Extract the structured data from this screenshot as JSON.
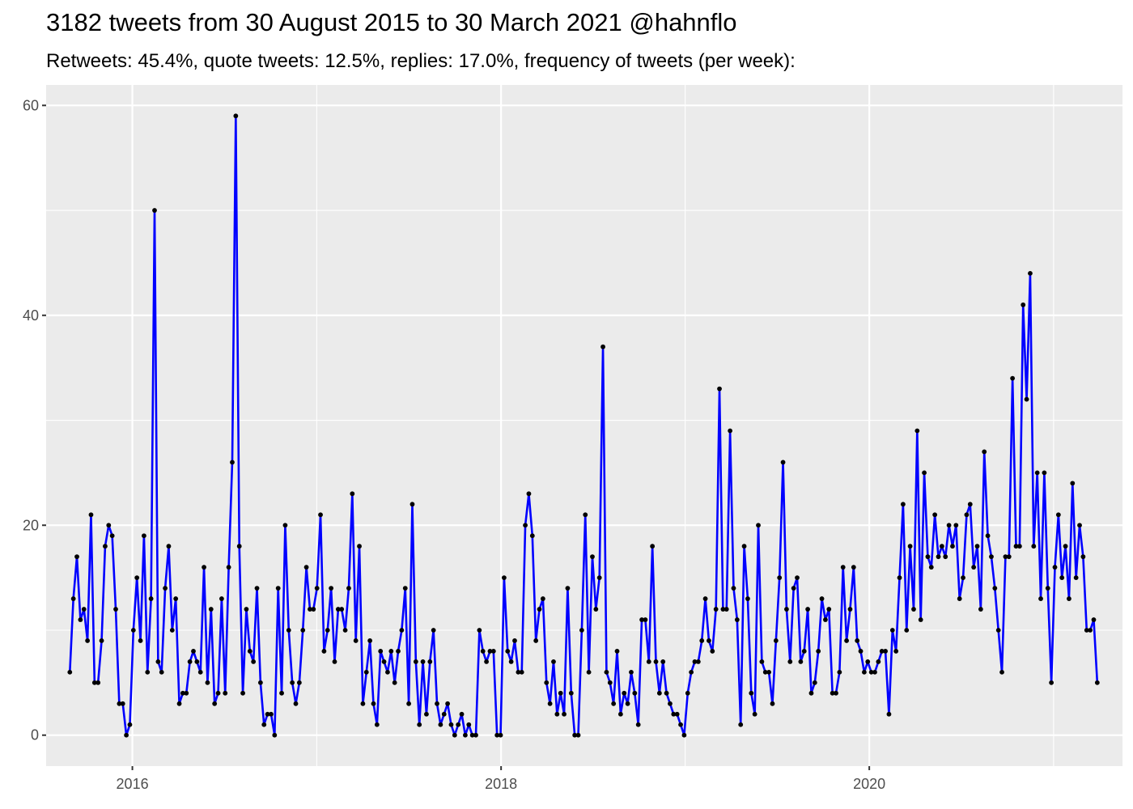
{
  "chart_data": {
    "type": "line",
    "title": "3182 tweets from 30 August 2015 to 30 March 2021 @hahnflo",
    "subtitle": "Retweets: 45.4%, quote tweets: 12.5%, replies: 17.0%, frequency of tweets (per week):",
    "xlabel": "",
    "ylabel": "",
    "x_start": "2015-08-30",
    "x_step_days": 7,
    "x_ticks": [
      {
        "label": "2016",
        "date": "2016-01-01"
      },
      {
        "label": "2018",
        "date": "2018-01-01"
      },
      {
        "label": "2020",
        "date": "2020-01-01"
      }
    ],
    "y_ticks": [
      0,
      20,
      40,
      60
    ],
    "ylim": [
      -2.95,
      61.95
    ],
    "xlim": [
      "2015-07-14",
      "2021-05-17"
    ],
    "grid": true,
    "legend": "none",
    "series": [
      {
        "color": "#0000ff",
        "point_color": "#000000",
        "values": [
          6,
          13,
          17,
          11,
          12,
          9,
          21,
          5,
          5,
          9,
          18,
          20,
          19,
          12,
          3,
          3,
          0,
          1,
          10,
          15,
          9,
          19,
          6,
          13,
          50,
          7,
          6,
          14,
          18,
          10,
          13,
          3,
          4,
          4,
          7,
          8,
          7,
          6,
          16,
          5,
          12,
          3,
          4,
          13,
          4,
          16,
          26,
          59,
          18,
          4,
          12,
          8,
          7,
          14,
          5,
          1,
          2,
          2,
          0,
          14,
          4,
          20,
          10,
          5,
          3,
          5,
          10,
          16,
          12,
          12,
          14,
          21,
          8,
          10,
          14,
          7,
          12,
          12,
          10,
          14,
          23,
          9,
          18,
          3,
          6,
          9,
          3,
          1,
          8,
          7,
          6,
          8,
          5,
          8,
          10,
          14,
          3,
          22,
          7,
          1,
          7,
          2,
          7,
          10,
          3,
          1,
          2,
          3,
          1,
          0,
          1,
          2,
          0,
          1,
          0,
          0,
          10,
          8,
          7,
          8,
          8,
          0,
          0,
          15,
          8,
          7,
          9,
          6,
          6,
          20,
          23,
          19,
          9,
          12,
          13,
          5,
          3,
          7,
          2,
          4,
          2,
          14,
          4,
          0,
          0,
          10,
          21,
          6,
          17,
          12,
          15,
          37,
          6,
          5,
          3,
          8,
          2,
          4,
          3,
          6,
          4,
          1,
          11,
          11,
          7,
          18,
          7,
          4,
          7,
          4,
          3,
          2,
          2,
          1,
          0,
          4,
          6,
          7,
          7,
          9,
          13,
          9,
          8,
          12,
          33,
          12,
          12,
          29,
          14,
          11,
          1,
          18,
          13,
          4,
          2,
          20,
          7,
          6,
          6,
          3,
          9,
          15,
          26,
          12,
          7,
          14,
          15,
          7,
          8,
          12,
          4,
          5,
          8,
          13,
          11,
          12,
          4,
          4,
          6,
          16,
          9,
          12,
          16,
          9,
          8,
          6,
          7,
          6,
          6,
          7,
          8,
          8,
          2,
          10,
          8,
          15,
          22,
          10,
          18,
          12,
          29,
          11,
          25,
          17,
          16,
          21,
          17,
          18,
          17,
          20,
          18,
          20,
          13,
          15,
          21,
          22,
          16,
          18,
          12,
          27,
          19,
          17,
          14,
          10,
          6,
          17,
          17,
          34,
          18,
          18,
          41,
          32,
          44,
          18,
          25,
          13,
          25,
          14,
          5,
          16,
          21,
          15,
          18,
          13,
          24,
          15,
          20,
          17,
          10,
          10,
          11,
          5
        ]
      }
    ]
  }
}
